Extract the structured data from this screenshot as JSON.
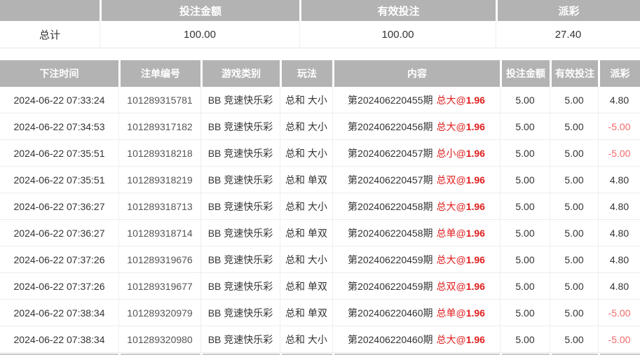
{
  "summary": {
    "headers": {
      "label": "",
      "bet_amount": "投注金额",
      "valid_bet": "有效投注",
      "payout": "派彩"
    },
    "total_label": "总计",
    "totals": {
      "bet_amount": "100.00",
      "valid_bet": "100.00",
      "payout": "27.40"
    }
  },
  "table": {
    "headers": [
      "下注时间",
      "注单编号",
      "游戏类别",
      "玩法",
      "内容",
      "投注金额",
      "有效投注",
      "派彩"
    ],
    "rows": [
      {
        "time": "2024-06-22 07:33:24",
        "order_id": "101289315781",
        "game": "BB 竞速快乐彩",
        "play": "总和 大小",
        "period": "第202406220455期",
        "selection": "总大",
        "at": "@",
        "odds": "1.96",
        "bet": "5.00",
        "valid": "5.00",
        "payout": "4.80"
      },
      {
        "time": "2024-06-22 07:34:53",
        "order_id": "101289317182",
        "game": "BB 竞速快乐彩",
        "play": "总和 大小",
        "period": "第202406220456期",
        "selection": "总大",
        "at": "@",
        "odds": "1.96",
        "bet": "5.00",
        "valid": "5.00",
        "payout": "-5.00"
      },
      {
        "time": "2024-06-22 07:35:51",
        "order_id": "101289318218",
        "game": "BB 竞速快乐彩",
        "play": "总和 大小",
        "period": "第202406220457期",
        "selection": "总小",
        "at": "@",
        "odds": "1.96",
        "bet": "5.00",
        "valid": "5.00",
        "payout": "-5.00"
      },
      {
        "time": "2024-06-22 07:35:51",
        "order_id": "101289318219",
        "game": "BB 竞速快乐彩",
        "play": "总和 单双",
        "period": "第202406220457期",
        "selection": "总双",
        "at": "@",
        "odds": "1.96",
        "bet": "5.00",
        "valid": "5.00",
        "payout": "4.80"
      },
      {
        "time": "2024-06-22 07:36:27",
        "order_id": "101289318713",
        "game": "BB 竞速快乐彩",
        "play": "总和 大小",
        "period": "第202406220458期",
        "selection": "总大",
        "at": "@",
        "odds": "1.96",
        "bet": "5.00",
        "valid": "5.00",
        "payout": "4.80"
      },
      {
        "time": "2024-06-22 07:36:27",
        "order_id": "101289318714",
        "game": "BB 竞速快乐彩",
        "play": "总和 单双",
        "period": "第202406220458期",
        "selection": "总单",
        "at": "@",
        "odds": "1.96",
        "bet": "5.00",
        "valid": "5.00",
        "payout": "4.80"
      },
      {
        "time": "2024-06-22 07:37:26",
        "order_id": "101289319676",
        "game": "BB 竞速快乐彩",
        "play": "总和 大小",
        "period": "第202406220459期",
        "selection": "总大",
        "at": "@",
        "odds": "1.96",
        "bet": "5.00",
        "valid": "5.00",
        "payout": "4.80"
      },
      {
        "time": "2024-06-22 07:37:26",
        "order_id": "101289319677",
        "game": "BB 竞速快乐彩",
        "play": "总和 单双",
        "period": "第202406220459期",
        "selection": "总双",
        "at": "@",
        "odds": "1.96",
        "bet": "5.00",
        "valid": "5.00",
        "payout": "4.80"
      },
      {
        "time": "2024-06-22 07:38:34",
        "order_id": "101289320979",
        "game": "BB 竞速快乐彩",
        "play": "总和 单双",
        "period": "第202406220460期",
        "selection": "总单",
        "at": "@",
        "odds": "1.96",
        "bet": "5.00",
        "valid": "5.00",
        "payout": "-5.00"
      },
      {
        "time": "2024-06-22 07:38:34",
        "order_id": "101289320980",
        "game": "BB 竞速快乐彩",
        "play": "总和 大小",
        "period": "第202406220460期",
        "selection": "总大",
        "at": "@",
        "odds": "1.96",
        "bet": "5.00",
        "valid": "5.00",
        "payout": "-5.00"
      }
    ]
  },
  "colors": {
    "header_bg": "#b3b3b3",
    "selection_red": "#e01e1e",
    "negative_payout": "#f06a6a",
    "border": "#ededed",
    "text": "#333333"
  }
}
